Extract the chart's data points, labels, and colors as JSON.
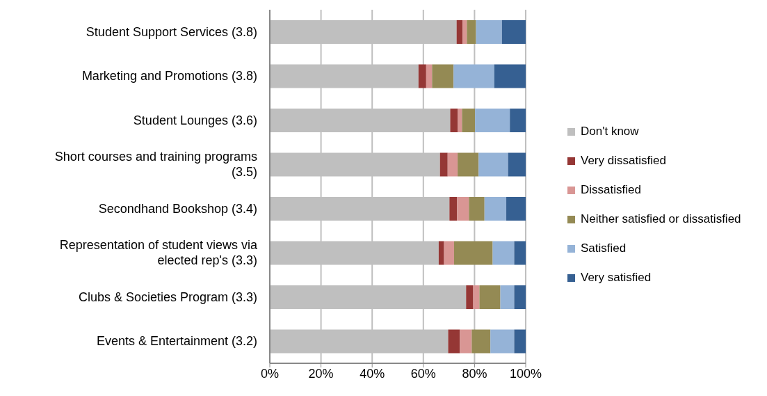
{
  "chart_data": {
    "type": "bar",
    "orientation": "horizontal",
    "stacked": true,
    "categories": [
      "Student Support Services (3.8)",
      "Marketing and Promotions (3.8)",
      "Student Lounges (3.6)",
      "Short courses and training programs (3.5)",
      "Secondhand Bookshop (3.4)",
      "Representation of student views via elected rep's (3.3)",
      "Clubs & Societies Program (3.3)",
      "Events & Entertainment (3.2)"
    ],
    "series": [
      {
        "name": "Don't know",
        "color": "#bfbfbf",
        "values": [
          73.0,
          58.1,
          70.5,
          66.5,
          70.2,
          66.0,
          76.7,
          69.7
        ]
      },
      {
        "name": "Very dissatisfied",
        "color": "#953735",
        "values": [
          2.3,
          3.0,
          3.0,
          3.0,
          3.0,
          2.1,
          2.8,
          4.6
        ]
      },
      {
        "name": "Dissatisfied",
        "color": "#d99694",
        "values": [
          1.7,
          2.3,
          1.6,
          3.9,
          4.6,
          3.9,
          2.4,
          4.6
        ]
      },
      {
        "name": "Neither satisfied or dissatisfied",
        "color": "#948a54",
        "values": [
          3.6,
          8.4,
          5.1,
          8.2,
          6.1,
          15.1,
          8.2,
          7.3
        ]
      },
      {
        "name": "Satisfied",
        "color": "#95b3d7",
        "values": [
          10.1,
          15.9,
          13.6,
          11.5,
          8.5,
          8.4,
          5.4,
          9.3
        ]
      },
      {
        "name": "Very satisfied",
        "color": "#366092",
        "values": [
          9.3,
          12.3,
          6.2,
          6.9,
          7.6,
          4.5,
          4.5,
          4.5
        ]
      }
    ],
    "xlim": [
      0,
      100
    ],
    "xticks": [
      {
        "value": 0,
        "label": "0%"
      },
      {
        "value": 20,
        "label": "20%"
      },
      {
        "value": 40,
        "label": "40%"
      },
      {
        "value": 60,
        "label": "60%"
      },
      {
        "value": 80,
        "label": "80%"
      },
      {
        "value": 100,
        "label": "100%"
      }
    ],
    "grid": "x",
    "legend": "right"
  }
}
